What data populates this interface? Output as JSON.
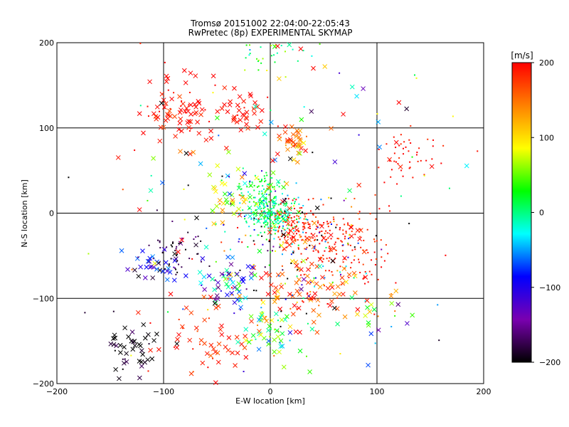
{
  "chart_data": {
    "type": "scatter",
    "title": "Tromsø 20151002 22:04:00-22:05:43",
    "subtitle": "RwPretec (8p) EXPERIMENTAL SKYMAP",
    "xlabel": "E-W location [km]",
    "ylabel": "N-S location [km]",
    "xlim": [
      -200,
      200
    ],
    "ylim": [
      -200,
      200
    ],
    "x_ticks": [
      -200,
      -100,
      0,
      100,
      200
    ],
    "y_ticks": [
      -200,
      -100,
      0,
      100,
      200
    ],
    "grid": true,
    "colorbar": {
      "label": "[m/s]",
      "range": [
        -200,
        200
      ],
      "ticks": [
        200,
        100,
        0,
        -100,
        -200
      ],
      "colormap": [
        "#000000",
        "#7a00b0",
        "#0000ff",
        "#00ffff",
        "#00ff00",
        "#ffff00",
        "#ff8000",
        "#ff0000"
      ]
    },
    "markers": [
      "dot",
      "cross"
    ],
    "clusters": [
      {
        "x": 0,
        "y": 0,
        "spread": 12,
        "n": 220,
        "v": 0,
        "vspread": 25,
        "marker": "dot"
      },
      {
        "x": -8,
        "y": 28,
        "spread": 9,
        "n": 70,
        "v": 20,
        "vspread": 20,
        "marker": "dot"
      },
      {
        "x": 25,
        "y": -18,
        "spread": 14,
        "n": 150,
        "v": 185,
        "vspread": 20,
        "marker": "dot"
      },
      {
        "x": 70,
        "y": -40,
        "spread": 22,
        "n": 140,
        "v": 190,
        "vspread": 15,
        "marker": "dot"
      },
      {
        "x": 30,
        "y": -85,
        "spread": 25,
        "n": 90,
        "v": 170,
        "vspread": 40,
        "marker": "cross"
      },
      {
        "x": -80,
        "y": 120,
        "spread": 18,
        "n": 80,
        "v": 195,
        "vspread": 10,
        "marker": "cross"
      },
      {
        "x": -30,
        "y": 120,
        "spread": 12,
        "n": 35,
        "v": 195,
        "vspread": 10,
        "marker": "cross"
      },
      {
        "x": 22,
        "y": 85,
        "spread": 6,
        "n": 35,
        "v": 150,
        "vspread": 30,
        "marker": "cross"
      },
      {
        "x": 0,
        "y": 190,
        "spread": 15,
        "n": 40,
        "v": 30,
        "vspread": 40,
        "marker": "dot"
      },
      {
        "x": 130,
        "y": 70,
        "spread": 18,
        "n": 50,
        "v": 195,
        "vspread": 10,
        "marker": "dot"
      },
      {
        "x": -130,
        "y": -160,
        "spread": 14,
        "n": 45,
        "v": -195,
        "vspread": 15,
        "marker": "cross"
      },
      {
        "x": -60,
        "y": -150,
        "spread": 25,
        "n": 60,
        "v": 190,
        "vspread": 15,
        "marker": "cross"
      },
      {
        "x": 0,
        "y": -140,
        "spread": 15,
        "n": 50,
        "v": 30,
        "vspread": 50,
        "marker": "cross"
      },
      {
        "x": -110,
        "y": -60,
        "spread": 12,
        "n": 40,
        "v": -120,
        "vspread": 80,
        "marker": "cross"
      },
      {
        "x": -40,
        "y": -80,
        "spread": 15,
        "n": 55,
        "v": -60,
        "vspread": 90,
        "marker": "cross"
      },
      {
        "x": -90,
        "y": -40,
        "spread": 14,
        "n": 45,
        "v": -190,
        "vspread": 20,
        "marker": "dot"
      },
      {
        "x": 100,
        "y": -120,
        "spread": 20,
        "n": 30,
        "v": 40,
        "vspread": 120,
        "marker": "cross"
      },
      {
        "x": -40,
        "y": 15,
        "spread": 14,
        "n": 30,
        "v": 80,
        "vspread": 40,
        "marker": "cross"
      },
      {
        "x": 20,
        "y": -40,
        "spread": 35,
        "n": 120,
        "v": -80,
        "vspread": 130,
        "marker": "dot"
      },
      {
        "x": 0,
        "y": 60,
        "spread": 80,
        "n": 90,
        "v": 60,
        "vspread": 140,
        "marker": "cross"
      },
      {
        "x": 0,
        "y": -20,
        "spread": 110,
        "n": 90,
        "v": 50,
        "vspread": 150,
        "marker": "dot"
      }
    ]
  }
}
